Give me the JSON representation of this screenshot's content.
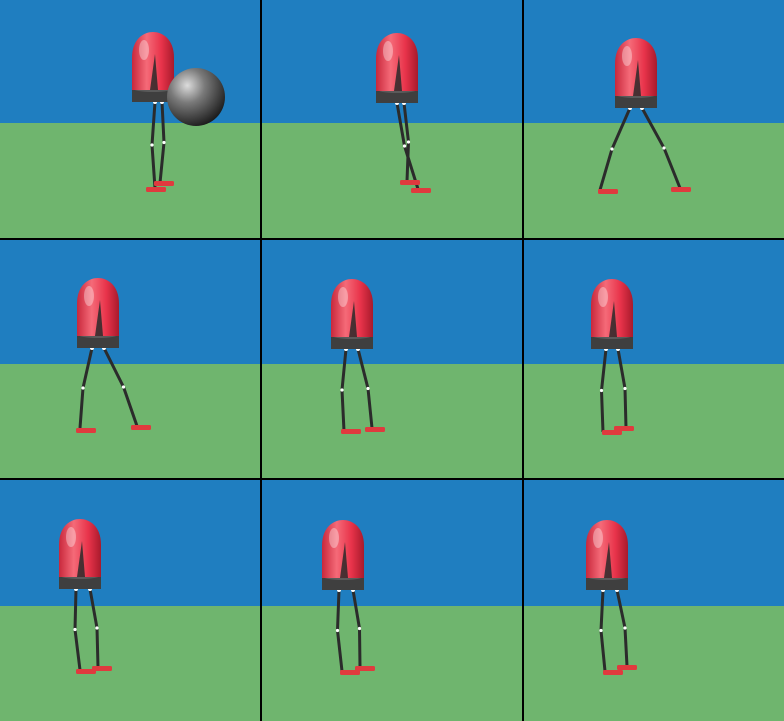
{
  "scene": {
    "sky_color": "#1f7ec0",
    "ground_color": "#6fb56e",
    "body_color": "#e8334a",
    "collar_color": "#3f3f3f",
    "leg_color": "#2b2b2b",
    "foot_color": "#e03a3e",
    "ball_color": "#4a4a4a"
  },
  "frames": [
    {
      "id": 1,
      "has_ball": true
    },
    {
      "id": 2,
      "has_ball": false
    },
    {
      "id": 3,
      "has_ball": false
    },
    {
      "id": 4,
      "has_ball": false
    },
    {
      "id": 5,
      "has_ball": false
    },
    {
      "id": 6,
      "has_ball": false
    },
    {
      "id": 7,
      "has_ball": false
    },
    {
      "id": 8,
      "has_ball": false
    },
    {
      "id": 9,
      "has_ball": false
    }
  ]
}
